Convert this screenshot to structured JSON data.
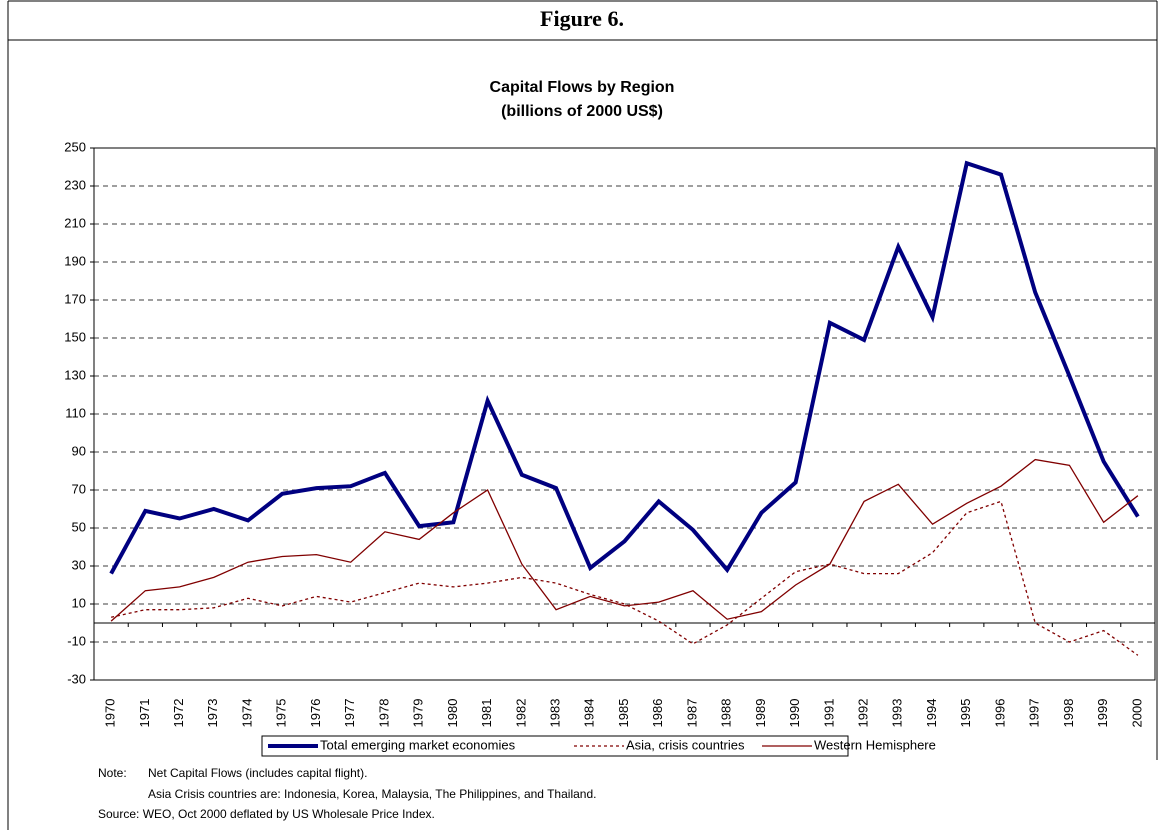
{
  "header": "Figure 6.",
  "chart_data": {
    "type": "line",
    "title": "Capital Flows by Region",
    "subtitle": "(billions of 2000 US$)",
    "categories": [
      "1970",
      "1971",
      "1972",
      "1973",
      "1974",
      "1975",
      "1976",
      "1977",
      "1978",
      "1979",
      "1980",
      "1981",
      "1982",
      "1983",
      "1984",
      "1985",
      "1986",
      "1987",
      "1988",
      "1989",
      "1990",
      "1991",
      "1992",
      "1993",
      "1994",
      "1995",
      "1996",
      "1997",
      "1998",
      "1999",
      "2000"
    ],
    "series": [
      {
        "name": "Total emerging market economies",
        "color": "#000080",
        "line_style": "thick",
        "values": [
          26,
          59,
          55,
          60,
          54,
          68,
          71,
          72,
          79,
          51,
          53,
          117,
          78,
          71,
          29,
          43,
          64,
          49,
          28,
          58,
          74,
          158,
          149,
          198,
          161,
          242,
          236,
          174,
          130,
          85,
          56
        ]
      },
      {
        "name": "Asia, crisis countries",
        "color": "#800000",
        "line_style": "dotted",
        "values": [
          3,
          7,
          7,
          8,
          13,
          9,
          14,
          11,
          16,
          21,
          19,
          21,
          24,
          21,
          15,
          10,
          1,
          -11,
          -1,
          13,
          27,
          31,
          26,
          26,
          37,
          58,
          64,
          0,
          -10,
          -4,
          -17
        ]
      },
      {
        "name": "Western Hemisphere",
        "color": "#800000",
        "line_style": "solid",
        "values": [
          1,
          17,
          19,
          24,
          32,
          35,
          36,
          32,
          48,
          44,
          58,
          70,
          31,
          7,
          14,
          9,
          11,
          17,
          2,
          6,
          20,
          31,
          64,
          73,
          52,
          63,
          72,
          86,
          83,
          53,
          67
        ]
      }
    ],
    "ylim": [
      -30,
      250
    ],
    "yticks": [
      -30,
      -10,
      10,
      30,
      50,
      70,
      90,
      110,
      130,
      150,
      170,
      190,
      210,
      230,
      250
    ],
    "grid": true,
    "legend": "bottom"
  },
  "notes": {
    "label": "Note:",
    "lines": [
      "Net Capital Flows (includes capital flight).",
      "Asia Crisis countries are: Indonesia, Korea, Malaysia, The Philippines, and Thailand."
    ],
    "source": "Source: WEO, Oct 2000 deflated by US Wholesale Price Index."
  }
}
